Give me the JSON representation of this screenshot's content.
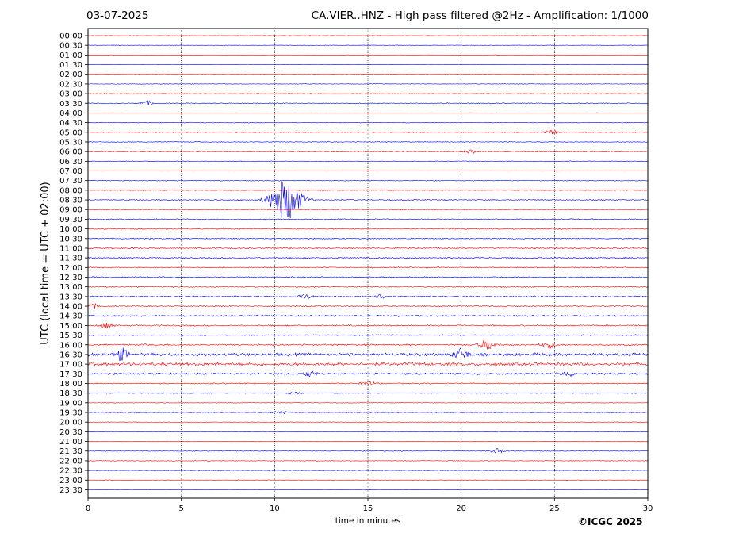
{
  "header": {
    "date": "03-07-2025",
    "title": "CA.VIER..HNZ - High pass filtered @2Hz - Amplification: 1/1000"
  },
  "footer": {
    "copyright": "©ICGC 2025"
  },
  "chart_data": {
    "type": "line",
    "title": "CA.VIER..HNZ - High pass filtered @2Hz - Amplification: 1/1000",
    "xlabel": "time in minutes",
    "ylabel": "UTC (local time = UTC + 02:00)",
    "xlim": [
      0,
      30
    ],
    "xticks": [
      "0",
      "5",
      "10",
      "15",
      "20",
      "25",
      "30"
    ],
    "xtick_values": [
      0,
      5,
      10,
      15,
      20,
      25,
      30
    ],
    "vertical_gridlines_at": [
      5,
      10,
      15,
      20,
      25
    ],
    "grid": "dotted vertical",
    "trace_colors": [
      "#ff0000",
      "#0000ff"
    ],
    "rows": [
      "00:00",
      "00:30",
      "01:00",
      "01:30",
      "02:00",
      "02:30",
      "03:00",
      "03:30",
      "04:00",
      "04:30",
      "05:00",
      "05:30",
      "06:00",
      "06:30",
      "07:00",
      "07:30",
      "08:00",
      "08:30",
      "09:00",
      "09:30",
      "10:00",
      "10:30",
      "11:00",
      "11:30",
      "12:00",
      "12:30",
      "13:00",
      "13:30",
      "14:00",
      "14:30",
      "15:00",
      "15:30",
      "16:00",
      "16:30",
      "17:00",
      "17:30",
      "18:00",
      "18:30",
      "19:00",
      "19:30",
      "20:00",
      "20:30",
      "21:00",
      "21:30",
      "22:00",
      "22:30",
      "23:00",
      "23:30"
    ],
    "row_colors": [
      "#ff0000",
      "#0000ff",
      "#ff0000",
      "#0000ff",
      "#ff0000",
      "#0000ff",
      "#ff0000",
      "#0000ff",
      "#ff0000",
      "#0000ff",
      "#ff0000",
      "#0000ff",
      "#ff0000",
      "#0000ff",
      "#ff0000",
      "#0000ff",
      "#ff0000",
      "#0000ff",
      "#ff0000",
      "#0000ff",
      "#ff0000",
      "#0000ff",
      "#ff0000",
      "#0000ff",
      "#ff0000",
      "#0000ff",
      "#ff0000",
      "#0000ff",
      "#ff0000",
      "#0000ff",
      "#ff0000",
      "#0000ff",
      "#ff0000",
      "#0000ff",
      "#ff0000",
      "#0000ff",
      "#ff0000",
      "#0000ff",
      "#ff0000",
      "#0000ff",
      "#ff0000",
      "#0000ff",
      "#ff0000",
      "#0000ff",
      "#ff0000",
      "#0000ff",
      "#ff0000",
      "#0000ff"
    ],
    "row_noise_level": [
      0.3,
      0.3,
      0.3,
      0.3,
      0.3,
      0.4,
      0.4,
      0.6,
      0.4,
      0.5,
      0.6,
      0.6,
      0.7,
      0.5,
      0.4,
      0.6,
      0.5,
      0.8,
      0.6,
      0.8,
      0.9,
      0.8,
      1.0,
      1.0,
      0.8,
      0.9,
      0.9,
      1.0,
      0.9,
      1.1,
      1.0,
      0.8,
      1.2,
      2.2,
      2.4,
      1.3,
      0.8,
      0.6,
      0.4,
      0.5,
      0.4,
      0.4,
      0.4,
      0.5,
      0.5,
      0.4,
      0.4,
      0.3
    ],
    "events": [
      {
        "row": "03:30",
        "minute": 3.1,
        "amplitude": 3
      },
      {
        "row": "05:00",
        "minute": 24.8,
        "amplitude": 3
      },
      {
        "row": "06:00",
        "minute": 20.5,
        "amplitude": 2
      },
      {
        "row": "08:30",
        "minute": 10.6,
        "amplitude": 26
      },
      {
        "row": "13:30",
        "minute": 11.6,
        "amplitude": 3
      },
      {
        "row": "13:30",
        "minute": 15.7,
        "amplitude": 3
      },
      {
        "row": "14:00",
        "minute": 0.2,
        "amplitude": 3
      },
      {
        "row": "15:00",
        "minute": 1.0,
        "amplitude": 3
      },
      {
        "row": "16:00",
        "minute": 21.4,
        "amplitude": 7
      },
      {
        "row": "16:00",
        "minute": 24.7,
        "amplitude": 4
      },
      {
        "row": "16:30",
        "minute": 1.8,
        "amplitude": 7
      },
      {
        "row": "16:30",
        "minute": 20.0,
        "amplitude": 7
      },
      {
        "row": "17:30",
        "minute": 11.9,
        "amplitude": 3
      },
      {
        "row": "17:30",
        "minute": 25.7,
        "amplitude": 3
      },
      {
        "row": "18:00",
        "minute": 15.0,
        "amplitude": 3
      },
      {
        "row": "18:30",
        "minute": 11.1,
        "amplitude": 2
      },
      {
        "row": "19:30",
        "minute": 10.3,
        "amplitude": 2
      },
      {
        "row": "21:30",
        "minute": 21.9,
        "amplitude": 3
      }
    ]
  }
}
